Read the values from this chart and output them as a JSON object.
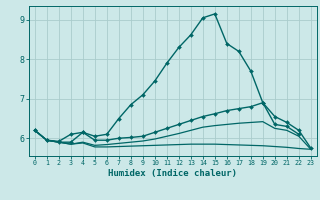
{
  "title": "",
  "xlabel": "Humidex (Indice chaleur)",
  "bg_color": "#cce8e8",
  "grid_color": "#aacccc",
  "line_color": "#006666",
  "xlim": [
    -0.5,
    23.5
  ],
  "ylim": [
    5.55,
    9.35
  ],
  "yticks": [
    6,
    7,
    8,
    9
  ],
  "xticks": [
    0,
    1,
    2,
    3,
    4,
    5,
    6,
    7,
    8,
    9,
    10,
    11,
    12,
    13,
    14,
    15,
    16,
    17,
    18,
    19,
    20,
    21,
    22,
    23
  ],
  "series": [
    {
      "x": [
        0,
        1,
        2,
        3,
        4,
        5,
        6,
        7,
        8,
        9,
        10,
        11,
        12,
        13,
        14,
        15,
        16,
        17,
        18,
        19,
        20,
        21,
        22
      ],
      "y": [
        6.2,
        5.95,
        5.92,
        6.1,
        6.15,
        6.05,
        6.1,
        6.5,
        6.85,
        7.1,
        7.45,
        7.9,
        8.3,
        8.62,
        9.05,
        9.15,
        8.4,
        8.2,
        7.7,
        6.9,
        6.35,
        6.3,
        6.1
      ],
      "marker": "D",
      "markersize": 2.0,
      "linewidth": 1.0,
      "color": "#006666"
    },
    {
      "x": [
        0,
        1,
        2,
        3,
        4,
        5,
        6,
        7,
        8,
        9,
        10,
        11,
        12,
        13,
        14,
        15,
        16,
        17,
        18,
        19,
        20,
        21,
        22,
        23
      ],
      "y": [
        6.2,
        5.95,
        5.9,
        5.9,
        6.15,
        5.95,
        5.95,
        6.0,
        6.02,
        6.05,
        6.15,
        6.25,
        6.35,
        6.45,
        6.55,
        6.62,
        6.7,
        6.75,
        6.8,
        6.9,
        6.55,
        6.4,
        6.2,
        5.75
      ],
      "marker": "D",
      "markersize": 2.0,
      "linewidth": 1.0,
      "color": "#006666"
    },
    {
      "x": [
        0,
        1,
        2,
        3,
        4,
        5,
        6,
        7,
        8,
        9,
        10,
        11,
        12,
        13,
        14,
        15,
        16,
        17,
        18,
        19,
        20,
        21,
        22,
        23
      ],
      "y": [
        6.2,
        5.95,
        5.9,
        5.85,
        5.9,
        5.82,
        5.84,
        5.87,
        5.9,
        5.93,
        5.98,
        6.05,
        6.12,
        6.2,
        6.28,
        6.32,
        6.35,
        6.38,
        6.4,
        6.42,
        6.25,
        6.2,
        6.05,
        5.72
      ],
      "marker": null,
      "markersize": 0,
      "linewidth": 0.9,
      "color": "#006666"
    },
    {
      "x": [
        0,
        1,
        2,
        3,
        4,
        5,
        6,
        7,
        8,
        9,
        10,
        11,
        12,
        13,
        14,
        15,
        16,
        17,
        18,
        19,
        20,
        21,
        22,
        23
      ],
      "y": [
        6.2,
        5.95,
        5.9,
        5.85,
        5.88,
        5.78,
        5.78,
        5.79,
        5.8,
        5.81,
        5.82,
        5.83,
        5.84,
        5.85,
        5.85,
        5.85,
        5.84,
        5.83,
        5.82,
        5.81,
        5.79,
        5.77,
        5.74,
        5.72
      ],
      "marker": null,
      "markersize": 0,
      "linewidth": 0.9,
      "color": "#006666"
    }
  ]
}
